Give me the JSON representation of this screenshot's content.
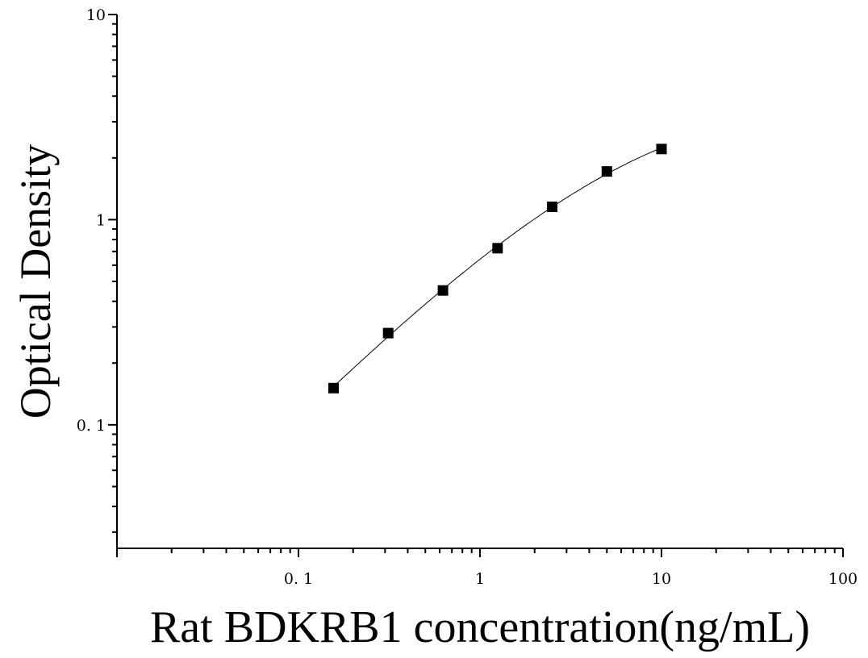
{
  "chart_data": {
    "type": "scatter",
    "xlabel": "Rat BDKRB1 concentration(ng/mL)",
    "ylabel": "Optical Density",
    "xscale": "log",
    "yscale": "log",
    "xlim": [
      0.01,
      100
    ],
    "ylim": [
      0.025,
      10
    ],
    "x_ticks": [
      {
        "value": 0.1,
        "label": "0. 1"
      },
      {
        "value": 1,
        "label": "1"
      },
      {
        "value": 10,
        "label": "10"
      },
      {
        "value": 100,
        "label": "100"
      }
    ],
    "y_ticks": [
      {
        "value": 0.1,
        "label": "0. 1"
      },
      {
        "value": 1,
        "label": "1"
      },
      {
        "value": 10,
        "label": "10"
      }
    ],
    "grid": false,
    "legend": "none",
    "marker": "square",
    "marker_color": "#000000",
    "line_color": "#000000",
    "series": [
      {
        "points": [
          {
            "x": 0.156,
            "y": 0.151
          },
          {
            "x": 0.312,
            "y": 0.28
          },
          {
            "x": 0.625,
            "y": 0.452
          },
          {
            "x": 1.25,
            "y": 0.726
          },
          {
            "x": 2.5,
            "y": 1.155
          },
          {
            "x": 5,
            "y": 1.718
          },
          {
            "x": 10,
            "y": 2.21
          }
        ]
      }
    ]
  }
}
